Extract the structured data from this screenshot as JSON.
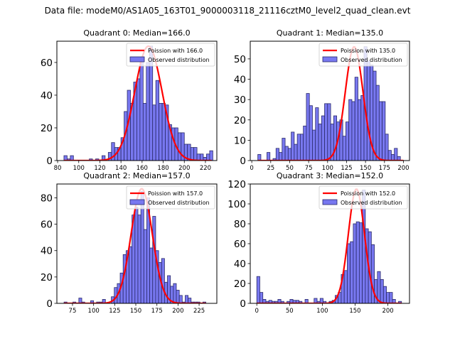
{
  "suptitle": "Data file: modeM0/AS1A05_163T01_9000003118_21116cztM0_level2_quad_clean.evt",
  "colors": {
    "bar_fill": "#7878f0",
    "bar_edge": "#2a2a6a",
    "curve": "#ff0000"
  },
  "chart_data": [
    {
      "type": "bar",
      "title": "Quadrant 0: Median=166.0",
      "xlim": [
        79.3,
        230.8
      ],
      "ylim": [
        0,
        73
      ],
      "xticks": [
        80,
        100,
        120,
        140,
        160,
        180,
        200,
        220
      ],
      "yticks": [
        0,
        20,
        40,
        60
      ],
      "bin_width": 3.0,
      "bin_starts": [
        86,
        89,
        92,
        95,
        98,
        101,
        104,
        107,
        110,
        113,
        116,
        119,
        122,
        125,
        128,
        131,
        134,
        137,
        140,
        143,
        146,
        149,
        152,
        155,
        158,
        161,
        164,
        167,
        170,
        173,
        176,
        179,
        182,
        185,
        188,
        191,
        194,
        197,
        200,
        203,
        206,
        209,
        212,
        215,
        218,
        221,
        224
      ],
      "values": [
        3,
        1,
        3,
        0,
        0,
        0,
        0,
        0,
        1,
        0,
        1,
        0,
        3,
        0,
        5,
        11,
        8,
        8,
        14,
        30,
        43,
        35,
        48,
        50,
        62,
        35,
        60,
        70,
        34,
        49,
        35,
        35,
        34,
        22,
        20,
        20,
        17,
        17,
        10,
        10,
        8,
        8,
        4,
        4,
        2,
        4,
        6
      ],
      "curve": {
        "label": "Poission with 166.0",
        "mean": 166.0,
        "peak": 70,
        "x_range": [
          86,
          226
        ]
      },
      "legend": [
        "Poission with 166.0",
        "Observed distribution"
      ],
      "legend_loc": "upper right"
    },
    {
      "type": "bar",
      "title": "Quadrant 1: Median=135.0",
      "xlim": [
        -2,
        208
      ],
      "ylim": [
        0,
        58.7
      ],
      "xticks": [
        0,
        25,
        50,
        75,
        100,
        125,
        150,
        175,
        200
      ],
      "yticks": [
        0,
        10,
        20,
        30,
        40,
        50
      ],
      "bin_width": 4.0,
      "bin_starts": [
        8,
        12,
        16,
        20,
        24,
        28,
        32,
        36,
        40,
        44,
        48,
        52,
        56,
        60,
        64,
        68,
        72,
        76,
        80,
        84,
        88,
        92,
        96,
        100,
        104,
        108,
        112,
        116,
        120,
        124,
        128,
        132,
        136,
        140,
        144,
        148,
        152,
        156,
        160,
        164,
        168,
        172,
        176,
        180,
        184,
        188,
        192,
        196
      ],
      "values": [
        3,
        0,
        0,
        4,
        0,
        1,
        6,
        4,
        11,
        7,
        6,
        14,
        8,
        13,
        13,
        17,
        33,
        27,
        15,
        26,
        18,
        22,
        28,
        28,
        18,
        22,
        19,
        20,
        12,
        19,
        30,
        29,
        41,
        30,
        32,
        56,
        49,
        47,
        44,
        37,
        29,
        29,
        13,
        5,
        3,
        6,
        2,
        0
      ],
      "curve": {
        "label": "Poission with 135.0",
        "mean": 135.0,
        "peak": 56,
        "x_range": [
          8,
          200
        ]
      },
      "legend": [
        "Poission with 135.0",
        "Observed distribution"
      ],
      "legend_loc": "upper right"
    },
    {
      "type": "bar",
      "title": "Quadrant 2: Median=157.0",
      "xlim": [
        56.5,
        246
      ],
      "ylim": [
        0,
        90.5
      ],
      "xticks": [
        75,
        100,
        125,
        150,
        175,
        200,
        225
      ],
      "yticks": [
        0,
        20,
        40,
        60,
        80
      ],
      "bin_width": 3.5,
      "bin_starts": [
        65,
        68.5,
        72,
        75.5,
        79,
        82.5,
        86,
        89.5,
        93,
        96.5,
        100,
        103.5,
        107,
        110.5,
        114,
        117.5,
        121,
        124.5,
        128,
        131.5,
        135,
        138.5,
        142,
        145.5,
        149,
        152.5,
        156,
        159.5,
        163,
        166.5,
        170,
        173.5,
        177,
        180.5,
        184,
        187.5,
        191,
        194.5,
        198,
        201.5,
        205,
        208.5,
        212,
        215.5,
        219,
        222.5,
        226,
        229.5
      ],
      "values": [
        1,
        0,
        0,
        1,
        0,
        4,
        1,
        0,
        0,
        2,
        0,
        1,
        1,
        3,
        0,
        0,
        5,
        12,
        15,
        23,
        37,
        40,
        43,
        67,
        73,
        67,
        85,
        56,
        80,
        42,
        66,
        40,
        31,
        34,
        16,
        21,
        13,
        15,
        10,
        6,
        1,
        6,
        4,
        1,
        1,
        1,
        0,
        1
      ],
      "curve": {
        "label": "Poission with 157.0",
        "mean": 157.0,
        "peak": 87,
        "x_range": [
          65,
          233
        ]
      },
      "legend": [
        "Poission with 157.0",
        "Observed distribution"
      ],
      "legend_loc": "upper right"
    },
    {
      "type": "bar",
      "title": "Quadrant 3: Median=152.0",
      "xlim": [
        -10,
        233
      ],
      "ylim": [
        0,
        120
      ],
      "xticks": [
        0,
        50,
        100,
        150,
        200
      ],
      "yticks": [
        0,
        20,
        40,
        60,
        80,
        100,
        120
      ],
      "bin_width": 4.6,
      "bin_starts": [
        0,
        4.6,
        9.2,
        13.8,
        18.4,
        23,
        27.6,
        32.2,
        36.8,
        41.4,
        46,
        50.6,
        55.2,
        59.8,
        64.4,
        69,
        73.6,
        78.2,
        82.8,
        87.4,
        92,
        96.6,
        101.2,
        105.8,
        110.4,
        115,
        119.6,
        124.2,
        128.8,
        133.4,
        138,
        142.6,
        147.2,
        151.8,
        156.4,
        161,
        165.6,
        170.2,
        174.8,
        179.4,
        184,
        188.6,
        193.2,
        197.8,
        202.4,
        207,
        211.6,
        216.2
      ],
      "values": [
        27,
        11,
        4,
        2,
        3,
        2,
        2,
        4,
        2,
        0,
        2,
        4,
        3,
        3,
        2,
        0,
        4,
        0,
        0,
        5,
        2,
        5,
        2,
        0,
        2,
        3,
        8,
        11,
        29,
        33,
        60,
        62,
        80,
        82,
        81,
        114,
        75,
        72,
        59,
        24,
        32,
        24,
        17,
        11,
        11,
        4,
        0,
        2
      ],
      "curve": {
        "label": "Poission with 152.0",
        "mean": 152.0,
        "peak": 115,
        "x_range": [
          0,
          221
        ]
      },
      "legend": [
        "Poission with 152.0",
        "Observed distribution"
      ],
      "legend_loc": "upper right"
    }
  ]
}
